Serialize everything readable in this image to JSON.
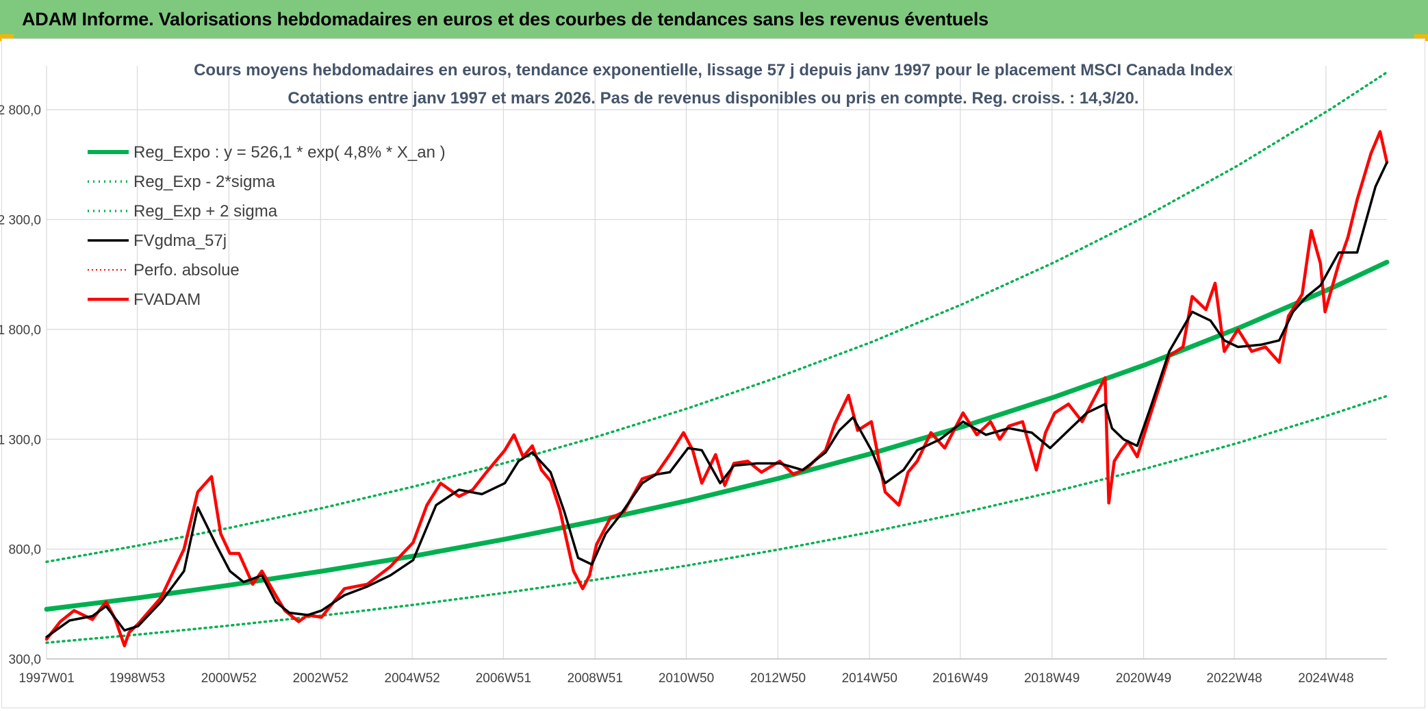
{
  "header": {
    "title": "ADAM Informe. Valorisations hebdomadaires en euros et des courbes de tendances sans les revenus éventuels"
  },
  "colors": {
    "banner": "#7fc97f",
    "regression": "#00b050",
    "bands": "#00b050",
    "smoothed": "#000000",
    "price": "#ff0000",
    "title": "#44546a"
  },
  "chart_data": {
    "type": "line",
    "title": "Cours moyens hebdomadaires en euros, tendance exponentielle, lissage 57 j depuis janv 1997 pour le placement MSCI Canada Index",
    "subtitle": "Cotations entre janv 1997 et mars 2026. Pas de revenus disponibles ou pris en compte. Reg. croiss. : 14,3/20.",
    "xlabel": "",
    "ylabel": "",
    "ylim": [
      300,
      3000
    ],
    "xlim": [
      1997.0,
      2026.25
    ],
    "y_ticks": [
      300,
      800,
      1300,
      1800,
      2300,
      2800
    ],
    "y_tick_labels": [
      "300,0",
      "800,0",
      "1 300,0",
      "1 800,0",
      "2 300,0",
      "2 800,0"
    ],
    "x_tick_positions": [
      1997.0,
      1998.98,
      2000.98,
      2002.98,
      2004.98,
      2006.97,
      2008.97,
      2010.96,
      2012.96,
      2014.96,
      2016.94,
      2018.94,
      2020.94,
      2022.92,
      2024.92
    ],
    "x_tick_labels": [
      "1997W01",
      "1998W53",
      "2000W52",
      "2002W52",
      "2004W52",
      "2006W51",
      "2008W51",
      "2010W50",
      "2012W50",
      "2014W50",
      "2016W49",
      "2018W49",
      "2020W49",
      "2022W48",
      "2024W48"
    ],
    "grid": true,
    "legend_position": "top-left",
    "series": [
      {
        "name": "Reg_Expo : y = 526,1 * exp( 4,8% *  X_an )",
        "style": "solid-thick",
        "x": [
          1997,
          1999,
          2001,
          2003,
          2005,
          2007,
          2009,
          2011,
          2013,
          2015,
          2017,
          2019,
          2021,
          2023,
          2025,
          2026.25
        ],
        "values": [
          526,
          578,
          636,
          699,
          768,
          845,
          929,
          1021,
          1123,
          1235,
          1358,
          1493,
          1641,
          1805,
          1984,
          2106
        ]
      },
      {
        "name": "Reg_Exp - 2*sigma",
        "style": "dotted",
        "x": [
          1997,
          1999,
          2001,
          2003,
          2005,
          2007,
          2009,
          2011,
          2013,
          2015,
          2017,
          2019,
          2021,
          2023,
          2025,
          2026.25
        ],
        "values": [
          374,
          411,
          452,
          497,
          546,
          601,
          661,
          726,
          799,
          878,
          966,
          1062,
          1167,
          1283,
          1411,
          1497
        ]
      },
      {
        "name": "Reg_Exp + 2 sigma",
        "style": "dotted",
        "x": [
          1997,
          1999,
          2001,
          2003,
          2005,
          2007,
          2009,
          2011,
          2013,
          2015,
          2017,
          2019,
          2021,
          2023,
          2025,
          2026.25
        ],
        "values": [
          742,
          816,
          897,
          986,
          1084,
          1192,
          1311,
          1441,
          1585,
          1742,
          1916,
          2106,
          2316,
          2546,
          2800,
          2970
        ]
      },
      {
        "name": "FVgdma_57j",
        "style": "solid",
        "x": [
          1997,
          1997.5,
          1998,
          1998.3,
          1998.7,
          1999,
          1999.5,
          2000,
          2000.3,
          2000.7,
          2001,
          2001.3,
          2001.7,
          2002,
          2002.3,
          2002.7,
          2003,
          2003.5,
          2004,
          2004.5,
          2005,
          2005.5,
          2006,
          2006.5,
          2007,
          2007.3,
          2007.6,
          2008,
          2008.3,
          2008.6,
          2008.9,
          2009.2,
          2009.5,
          2010,
          2010.3,
          2010.6,
          2011,
          2011.3,
          2011.7,
          2012,
          2012.5,
          2013,
          2013.5,
          2014,
          2014.3,
          2014.6,
          2015,
          2015.3,
          2015.7,
          2016,
          2016.5,
          2017,
          2017.5,
          2018,
          2018.5,
          2018.9,
          2019.3,
          2019.7,
          2020.1,
          2020.25,
          2020.5,
          2020.8,
          2021.1,
          2021.5,
          2022,
          2022.4,
          2022.7,
          2023,
          2023.5,
          2023.9,
          2024.2,
          2024.5,
          2024.8,
          2025.2,
          2025.6,
          2026,
          2026.25
        ],
        "values": [
          400,
          475,
          495,
          540,
          430,
          450,
          560,
          700,
          990,
          820,
          700,
          650,
          680,
          560,
          510,
          500,
          520,
          590,
          630,
          680,
          750,
          1000,
          1070,
          1050,
          1100,
          1200,
          1240,
          1150,
          970,
          760,
          730,
          870,
          950,
          1100,
          1140,
          1150,
          1260,
          1250,
          1100,
          1180,
          1190,
          1190,
          1160,
          1240,
          1340,
          1400,
          1250,
          1100,
          1160,
          1250,
          1300,
          1380,
          1320,
          1350,
          1330,
          1260,
          1340,
          1420,
          1460,
          1350,
          1300,
          1270,
          1450,
          1700,
          1880,
          1840,
          1750,
          1720,
          1730,
          1750,
          1880,
          1950,
          2000,
          2150,
          2150,
          2450,
          2560
        ]
      },
      {
        "name": "Perfo. absolue",
        "style": "dotted",
        "x": [],
        "values": []
      },
      {
        "name": "FVADAM",
        "style": "solid-thick",
        "x": [
          1997,
          1997.3,
          1997.6,
          1998,
          1998.3,
          1998.5,
          1998.7,
          1998.8,
          1999,
          1999.5,
          2000,
          2000.3,
          2000.6,
          2000.8,
          2001,
          2001.2,
          2001.5,
          2001.7,
          2002,
          2002.2,
          2002.5,
          2002.7,
          2003,
          2003.5,
          2004,
          2004.5,
          2005,
          2005.3,
          2005.6,
          2006,
          2006.3,
          2006.6,
          2007,
          2007.2,
          2007.4,
          2007.6,
          2007.8,
          2008,
          2008.2,
          2008.5,
          2008.7,
          2008.85,
          2009,
          2009.3,
          2009.6,
          2010,
          2010.3,
          2010.6,
          2010.9,
          2011.1,
          2011.3,
          2011.6,
          2011.8,
          2012,
          2012.3,
          2012.6,
          2013,
          2013.3,
          2013.6,
          2014,
          2014.2,
          2014.5,
          2014.7,
          2015,
          2015.3,
          2015.6,
          2015.8,
          2016,
          2016.3,
          2016.6,
          2017,
          2017.3,
          2017.6,
          2017.8,
          2018,
          2018.3,
          2018.6,
          2018.8,
          2019,
          2019.3,
          2019.6,
          2019.9,
          2020.1,
          2020.18,
          2020.3,
          2020.45,
          2020.6,
          2020.8,
          2021.1,
          2021.5,
          2021.8,
          2022,
          2022.3,
          2022.5,
          2022.7,
          2023,
          2023.3,
          2023.6,
          2023.9,
          2024.1,
          2024.4,
          2024.6,
          2024.8,
          2024.9,
          2025.2,
          2025.4,
          2025.6,
          2025.9,
          2026.1,
          2026.25
        ],
        "values": [
          390,
          470,
          520,
          480,
          560,
          480,
          360,
          420,
          460,
          580,
          800,
          1060,
          1130,
          870,
          780,
          780,
          640,
          700,
          590,
          520,
          470,
          500,
          490,
          620,
          640,
          720,
          830,
          1000,
          1100,
          1040,
          1070,
          1150,
          1250,
          1320,
          1220,
          1270,
          1160,
          1110,
          980,
          700,
          620,
          680,
          820,
          940,
          970,
          1120,
          1140,
          1230,
          1330,
          1250,
          1100,
          1230,
          1090,
          1190,
          1200,
          1150,
          1200,
          1140,
          1170,
          1250,
          1370,
          1500,
          1340,
          1380,
          1060,
          1000,
          1150,
          1200,
          1330,
          1260,
          1420,
          1320,
          1380,
          1300,
          1360,
          1380,
          1160,
          1330,
          1420,
          1460,
          1380,
          1500,
          1580,
          1010,
          1200,
          1250,
          1290,
          1220,
          1420,
          1680,
          1720,
          1950,
          1890,
          2010,
          1700,
          1800,
          1700,
          1720,
          1650,
          1860,
          1960,
          2250,
          2100,
          1880,
          2100,
          2220,
          2390,
          2600,
          2700,
          2560
        ]
      }
    ]
  }
}
